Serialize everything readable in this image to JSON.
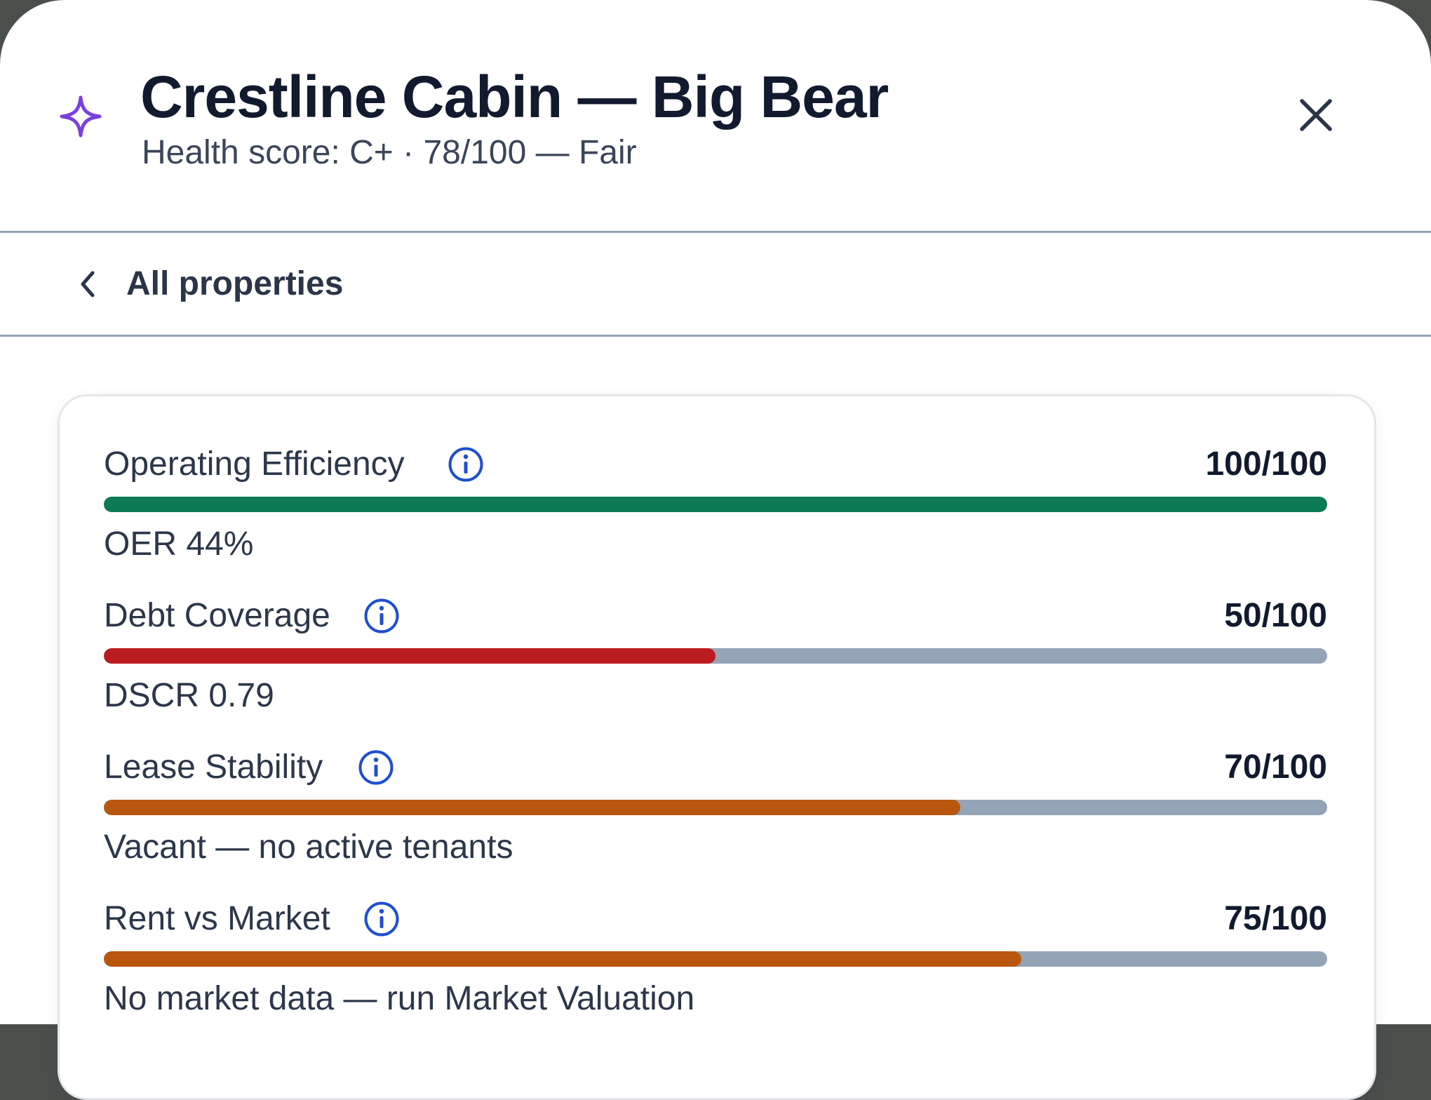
{
  "header": {
    "icon": "sparkle-icon",
    "title": "Crestline Cabin — Big Bear",
    "subtitle": "Health score: C+ · 78/100 — Fair",
    "close_icon": "close-icon"
  },
  "nav": {
    "back_label": "All properties",
    "back_icon": "chevron-left-icon"
  },
  "colors": {
    "accent": "#7a3fe0",
    "good": "#0b7a55",
    "bad": "#bb1c20",
    "warn": "#b9560e",
    "track": "#95a3b7",
    "info": "#1f4fd0"
  },
  "metrics": [
    {
      "name": "Operating Efficiency",
      "score": "100/100",
      "value": 100,
      "color": "#0b7a55",
      "detail": "OER 44%"
    },
    {
      "name": "Debt Coverage",
      "score": "50/100",
      "value": 50,
      "color": "#bb1c20",
      "detail": "DSCR 0.79"
    },
    {
      "name": "Lease Stability",
      "score": "70/100",
      "value": 70,
      "color": "#b9560e",
      "detail": "Vacant — no active tenants"
    },
    {
      "name": "Rent vs Market",
      "score": "75/100",
      "value": 75,
      "color": "#b9560e",
      "detail": "No market data — run Market Valuation"
    }
  ]
}
